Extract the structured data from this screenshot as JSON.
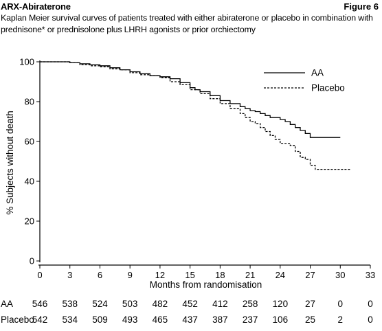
{
  "header": {
    "drug_name": "ARX-Abiraterone",
    "figure_label": "Figure 6",
    "subtitle": "Kaplan Meier survival curves of patients treated with either abiraterone or placebo in combination with prednisone* or prednisolone plus LHRH agonists or prior orchiectomy"
  },
  "chart_data": {
    "type": "line",
    "title": "Kaplan Meier survival curves of patients treated with either abiraterone or placebo in combination with prednisone* or prednisolone plus LHRH agonists or prior orchiectomy",
    "xlabel": "Months from randomisation",
    "ylabel": "% Subjects without death",
    "xlim": [
      0,
      33
    ],
    "ylim": [
      0,
      100
    ],
    "xticks": [
      0,
      3,
      6,
      9,
      12,
      15,
      18,
      21,
      24,
      27,
      30,
      33
    ],
    "yticks": [
      0,
      20,
      40,
      60,
      80,
      100
    ],
    "legend_position": "top-right",
    "series": [
      {
        "name": "AA",
        "style": "solid",
        "points": [
          [
            0,
            100
          ],
          [
            2.5,
            100
          ],
          [
            3,
            99.5
          ],
          [
            4,
            99
          ],
          [
            5,
            98.5
          ],
          [
            6,
            98
          ],
          [
            7,
            97
          ],
          [
            8,
            96
          ],
          [
            9,
            95
          ],
          [
            10,
            94
          ],
          [
            11,
            93
          ],
          [
            12,
            92.5
          ],
          [
            13,
            91.5
          ],
          [
            14,
            89.5
          ],
          [
            15,
            87
          ],
          [
            15.5,
            86
          ],
          [
            16,
            85
          ],
          [
            17,
            83
          ],
          [
            18,
            80.5
          ],
          [
            19,
            79
          ],
          [
            20,
            77.5
          ],
          [
            20.5,
            76.5
          ],
          [
            21,
            75.5
          ],
          [
            21.5,
            75
          ],
          [
            22,
            74
          ],
          [
            22.5,
            73
          ],
          [
            23,
            72
          ],
          [
            24,
            71
          ],
          [
            24.5,
            70
          ],
          [
            25,
            68.5
          ],
          [
            25.5,
            67
          ],
          [
            26,
            65.5
          ],
          [
            26.5,
            64
          ],
          [
            27,
            62
          ],
          [
            30,
            62
          ]
        ]
      },
      {
        "name": "Placebo",
        "style": "dashed",
        "points": [
          [
            0,
            100
          ],
          [
            2.5,
            100
          ],
          [
            3,
            99.5
          ],
          [
            4,
            98.5
          ],
          [
            5,
            98
          ],
          [
            6,
            97.5
          ],
          [
            7,
            96.5
          ],
          [
            8,
            96
          ],
          [
            9,
            94.5
          ],
          [
            10,
            93.5
          ],
          [
            11,
            93
          ],
          [
            12,
            92
          ],
          [
            13,
            90
          ],
          [
            14,
            88.5
          ],
          [
            15,
            86
          ],
          [
            16,
            84
          ],
          [
            17,
            81.5
          ],
          [
            18,
            79
          ],
          [
            19,
            76.5
          ],
          [
            20,
            74
          ],
          [
            20.5,
            72
          ],
          [
            21,
            70
          ],
          [
            21.5,
            69
          ],
          [
            22,
            67
          ],
          [
            22.5,
            65
          ],
          [
            23,
            63
          ],
          [
            23.5,
            61
          ],
          [
            24,
            59
          ],
          [
            25,
            58
          ],
          [
            25.5,
            55
          ],
          [
            26,
            52
          ],
          [
            26.5,
            51
          ],
          [
            27,
            48
          ],
          [
            27.5,
            46
          ],
          [
            31,
            46
          ]
        ]
      }
    ],
    "risk_table": {
      "months": [
        0,
        3,
        6,
        9,
        12,
        15,
        18,
        21,
        24,
        27,
        30,
        33
      ],
      "rows": [
        {
          "label": "AA",
          "values": [
            "546",
            "538",
            "524",
            "503",
            "482",
            "452",
            "412",
            "258",
            "120",
            "27",
            "0",
            "0"
          ]
        },
        {
          "label": "Placebo",
          "values": [
            "542",
            "534",
            "509",
            "493",
            "465",
            "437",
            "387",
            "237",
            "106",
            "25",
            "2",
            "0"
          ]
        }
      ]
    }
  }
}
